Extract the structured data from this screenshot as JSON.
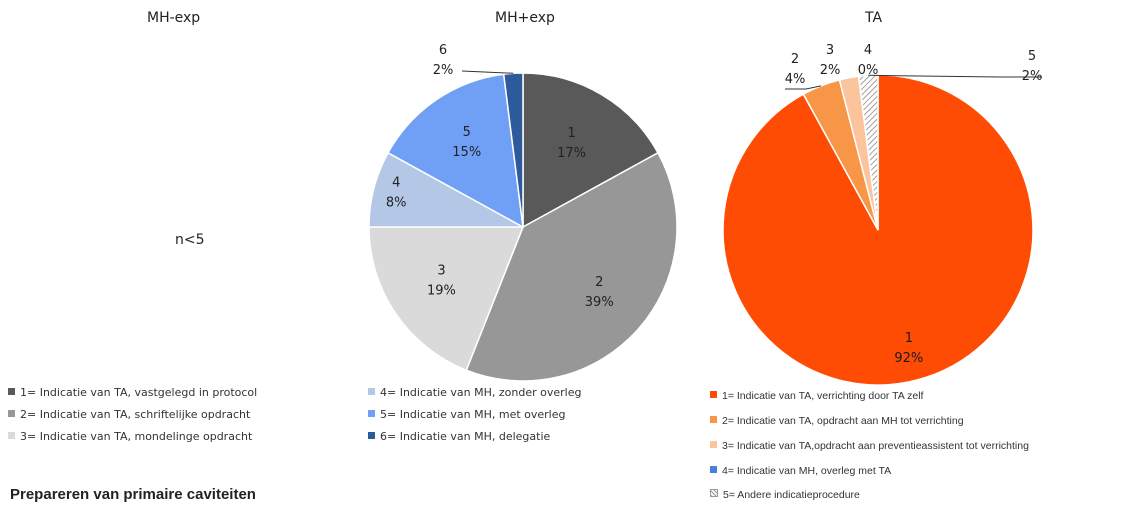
{
  "panels": {
    "left_title": "MH-exp",
    "middle_title": "MH+exp",
    "right_title": "TA",
    "left_note": "n<5"
  },
  "chart_data": [
    {
      "type": "pie",
      "title": "MH+exp",
      "slices": [
        {
          "id": "1",
          "label": "1",
          "value": 17,
          "value_label": "17%",
          "color": "#595959"
        },
        {
          "id": "2",
          "label": "2",
          "value": 39,
          "value_label": "39%",
          "color": "#979797"
        },
        {
          "id": "3",
          "label": "3",
          "value": 19,
          "value_label": "19%",
          "color": "#dadada"
        },
        {
          "id": "4",
          "label": "4",
          "value": 8,
          "value_label": "8%",
          "color": "#b4c7e7"
        },
        {
          "id": "5",
          "label": "5",
          "value": 15,
          "value_label": "15%",
          "color": "#6fa0f6"
        },
        {
          "id": "6",
          "label": "6",
          "value": 2,
          "value_label": "2%",
          "color": "#2d5a9a"
        }
      ],
      "legend": [
        "1= Indicatie van TA, vastgelegd in protocol",
        "2= Indicatie van TA, schriftelijke opdracht",
        "3= Indicatie van TA, mondelinge opdracht",
        "4= Indicatie van MH, zonder overleg",
        "5= Indicatie van MH, met overleg",
        "6= Indicatie van MH, delegatie"
      ]
    },
    {
      "type": "pie",
      "title": "TA",
      "slices": [
        {
          "id": "1",
          "label": "1",
          "value": 92,
          "value_label": "92%",
          "color": "#ff4c05"
        },
        {
          "id": "2",
          "label": "2",
          "value": 4,
          "value_label": "4%",
          "color": "#f79646"
        },
        {
          "id": "3",
          "label": "3",
          "value": 2,
          "value_label": "2%",
          "color": "#fbc49d"
        },
        {
          "id": "4",
          "label": "4",
          "value": 0,
          "value_label": "0%",
          "color": "#4a7fe0"
        },
        {
          "id": "5",
          "label": "5",
          "value": 2,
          "value_label": "2%",
          "color": "hatch"
        }
      ],
      "legend": [
        "1= Indicatie van TA, verrichting door TA zelf",
        "2= Indicatie van TA, opdracht aan MH tot verrichting",
        "3= Indicatie van TA,opdracht aan preventieassistent tot verrichting",
        "4= Indicatie van MH, overleg met TA",
        "5= Andere indicatieprocedure"
      ]
    }
  ],
  "section_heading": "Prepareren van primaire caviteiten"
}
